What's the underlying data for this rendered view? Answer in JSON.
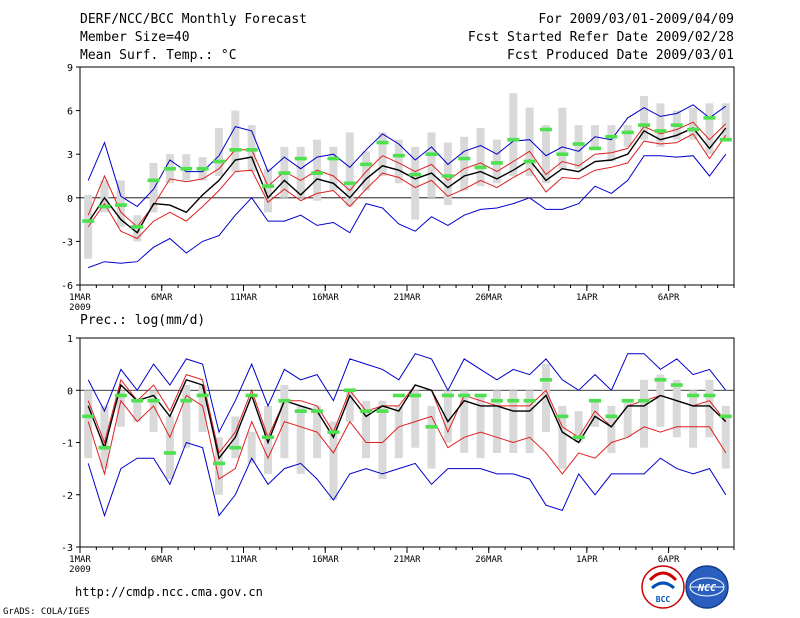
{
  "header": {
    "title": "DERF/NCC/BCC Monthly Forecast",
    "member": "Member Size=40",
    "variable": "Mean Surf. Temp.: °C",
    "period": "For 2009/03/01-2009/04/09",
    "started": "Fcst Started Refer Date 2009/02/28",
    "produced": "Fcst Produced Date 2009/03/01"
  },
  "footer": {
    "url": "http://cmdp.ncc.cma.gov.cn",
    "grads": "GrADS: COLA/IGES",
    "logo_bcc": "BCC",
    "logo_ncc": "NCC"
  },
  "colors": {
    "box": "#d9d9d9",
    "median": "#4ee04e",
    "mean": "#000000",
    "inner": "#e02020",
    "outer": "#0000cc"
  },
  "chart_data": [
    {
      "type": "line",
      "title": "Mean Surf. Temp.: °C",
      "x_ticks": [
        "1MAR",
        "6MAR",
        "11MAR",
        "16MAR",
        "21MAR",
        "26MAR",
        "1APR",
        "6APR"
      ],
      "x_sub": "2009",
      "x_tick_days": [
        1,
        6,
        11,
        16,
        21,
        26,
        32,
        37
      ],
      "xlim": [
        1,
        41
      ],
      "ylim": [
        -6,
        9
      ],
      "y_ticks": [
        -6,
        -3,
        0,
        3,
        6,
        9
      ],
      "series": [
        {
          "name": "max",
          "values": [
            1.2,
            3.8,
            0.1,
            -0.6,
            0.6,
            2.6,
            1.8,
            1.8,
            2.9,
            4.9,
            4.6,
            1.8,
            2.8,
            2.0,
            2.8,
            3.0,
            2.1,
            3.3,
            4.4,
            3.7,
            2.6,
            3.5,
            2.3,
            3.2,
            3.6,
            3.0,
            3.9,
            4.0,
            2.9,
            3.5,
            3.2,
            4.2,
            4.0,
            5.5,
            6.2,
            5.6,
            5.8,
            6.4,
            5.5,
            6.3
          ]
        },
        {
          "name": "upper",
          "values": [
            -1.2,
            1.5,
            -1.0,
            -2.0,
            -0.5,
            1.3,
            1.1,
            1.3,
            2.0,
            3.3,
            3.3,
            0.8,
            1.8,
            1.2,
            1.9,
            1.5,
            0.5,
            1.8,
            2.9,
            2.4,
            1.8,
            2.3,
            1.2,
            2.0,
            2.4,
            1.8,
            2.5,
            3.2,
            1.6,
            2.5,
            2.2,
            3.0,
            3.1,
            3.4,
            4.9,
            4.4,
            4.7,
            5.2,
            4.0,
            5.1
          ]
        },
        {
          "name": "mean",
          "values": [
            -1.7,
            0.0,
            -1.5,
            -2.4,
            -0.4,
            -0.5,
            -1.0,
            0.2,
            1.2,
            2.6,
            2.8,
            0.0,
            1.2,
            0.2,
            1.3,
            1.0,
            0.0,
            1.3,
            2.2,
            1.9,
            1.3,
            1.7,
            0.7,
            1.5,
            1.8,
            1.3,
            1.9,
            2.6,
            1.2,
            2.0,
            1.8,
            2.5,
            2.6,
            3.0,
            4.6,
            4.0,
            4.3,
            4.8,
            3.4,
            4.8
          ]
        },
        {
          "name": "lower",
          "values": [
            -2.0,
            -0.4,
            -2.3,
            -2.8,
            -1.6,
            -1.0,
            -1.6,
            -0.6,
            0.5,
            1.8,
            1.9,
            -0.3,
            0.6,
            -0.2,
            0.3,
            0.5,
            -0.6,
            0.6,
            1.7,
            1.4,
            0.7,
            1.2,
            0.1,
            0.6,
            1.2,
            0.7,
            1.4,
            2.0,
            0.4,
            1.4,
            1.3,
            1.9,
            2.1,
            2.4,
            3.9,
            3.7,
            3.8,
            4.4,
            2.7,
            4.3
          ]
        },
        {
          "name": "min",
          "values": [
            -4.8,
            -4.4,
            -4.5,
            -4.4,
            -3.4,
            -2.8,
            -3.8,
            -3.0,
            -2.6,
            -1.2,
            0.0,
            -1.6,
            -1.6,
            -1.2,
            -1.9,
            -1.7,
            -2.4,
            -0.4,
            -0.7,
            -1.8,
            -2.3,
            -1.3,
            -1.9,
            -1.2,
            -0.8,
            -0.7,
            -0.4,
            0.0,
            -0.8,
            -0.8,
            -0.4,
            0.8,
            0.3,
            1.2,
            2.9,
            2.9,
            2.8,
            2.9,
            1.5,
            3.0
          ]
        }
      ],
      "box_range": [
        [
          -4.2,
          0.2
        ],
        [
          -1.0,
          1.2
        ],
        [
          -2.0,
          1.2
        ],
        [
          -3.0,
          -1.2
        ],
        [
          -1.0,
          2.4
        ],
        [
          1.0,
          3.0
        ],
        [
          1.2,
          3.0
        ],
        [
          1.2,
          2.8
        ],
        [
          1.5,
          4.8
        ],
        [
          1.8,
          6.0
        ],
        [
          1.8,
          5.0
        ],
        [
          -1.0,
          2.0
        ],
        [
          0.0,
          3.5
        ],
        [
          0.0,
          3.5
        ],
        [
          -0.2,
          4.0
        ],
        [
          0.5,
          3.5
        ],
        [
          -0.6,
          4.5
        ],
        [
          0.5,
          3.2
        ],
        [
          1.5,
          4.5
        ],
        [
          1.0,
          4.0
        ],
        [
          -1.5,
          3.5
        ],
        [
          0.0,
          4.5
        ],
        [
          -0.5,
          3.8
        ],
        [
          0.5,
          4.2
        ],
        [
          0.8,
          4.8
        ],
        [
          1.0,
          4.0
        ],
        [
          1.5,
          7.2
        ],
        [
          1.5,
          6.2
        ],
        [
          1.0,
          5.0
        ],
        [
          2.0,
          6.2
        ],
        [
          2.0,
          5.0
        ],
        [
          3.5,
          5.0
        ],
        [
          2.5,
          5.0
        ],
        [
          3.5,
          5.0
        ],
        [
          4.0,
          7.0
        ],
        [
          3.5,
          6.5
        ],
        [
          4.0,
          6.0
        ],
        [
          4.0,
          6.2
        ],
        [
          3.0,
          6.5
        ],
        [
          4.0,
          6.5
        ]
      ],
      "median_marks": [
        -1.6,
        -0.6,
        -0.5,
        -2.0,
        1.2,
        2.0,
        2.0,
        2.0,
        2.5,
        3.3,
        3.3,
        0.8,
        1.7,
        2.7,
        1.7,
        2.7,
        1.0,
        2.3,
        3.8,
        2.9,
        1.6,
        3.0,
        1.5,
        2.7,
        2.1,
        2.4,
        4.0,
        2.5,
        4.7,
        3.0,
        3.7,
        3.4,
        4.2,
        4.5,
        5.0,
        4.6,
        5.0,
        4.7,
        5.5,
        4.0
      ]
    },
    {
      "type": "line",
      "title": "Prec.: log(mm/d)",
      "x_ticks": [
        "1MAR",
        "6MAR",
        "11MAR",
        "16MAR",
        "21MAR",
        "26MAR",
        "1APR",
        "6APR"
      ],
      "x_sub": "2009",
      "x_tick_days": [
        1,
        6,
        11,
        16,
        21,
        26,
        32,
        37
      ],
      "xlim": [
        1,
        41
      ],
      "ylim": [
        -3,
        1
      ],
      "y_ticks": [
        -3,
        -2,
        -1,
        0,
        1
      ],
      "series": [
        {
          "name": "max",
          "values": [
            0.2,
            -0.4,
            0.4,
            0.0,
            0.5,
            0.1,
            0.6,
            0.5,
            -0.8,
            -0.2,
            0.5,
            -0.3,
            0.4,
            0.2,
            0.3,
            -0.2,
            0.6,
            0.5,
            0.4,
            0.2,
            0.7,
            0.6,
            0.0,
            0.6,
            0.4,
            0.2,
            0.4,
            0.3,
            0.6,
            0.2,
            0.0,
            0.3,
            0.0,
            0.7,
            0.7,
            0.4,
            0.6,
            0.3,
            0.4,
            0.0
          ]
        },
        {
          "name": "upper",
          "values": [
            -0.2,
            -1.0,
            0.2,
            -0.2,
            0.1,
            -0.4,
            0.3,
            0.2,
            -1.2,
            -0.8,
            0.0,
            -0.9,
            -0.2,
            -0.2,
            -0.3,
            -0.8,
            0.0,
            -0.4,
            -0.3,
            -0.3,
            0.1,
            0.0,
            -0.8,
            -0.1,
            -0.2,
            -0.3,
            -0.3,
            -0.3,
            0.0,
            -0.7,
            -0.9,
            -0.4,
            -0.7,
            -0.3,
            -0.2,
            -0.1,
            -0.2,
            -0.3,
            -0.2,
            -0.6
          ]
        },
        {
          "name": "mean",
          "values": [
            -0.3,
            -1.1,
            0.1,
            -0.2,
            -0.1,
            -0.5,
            0.2,
            0.1,
            -1.3,
            -0.9,
            -0.1,
            -1.0,
            -0.2,
            -0.3,
            -0.4,
            -0.9,
            -0.1,
            -0.5,
            -0.3,
            -0.4,
            0.1,
            0.0,
            -0.6,
            -0.2,
            -0.3,
            -0.3,
            -0.4,
            -0.4,
            -0.1,
            -0.8,
            -1.0,
            -0.5,
            -0.7,
            -0.3,
            -0.3,
            -0.1,
            -0.2,
            -0.3,
            -0.3,
            -0.6
          ]
        },
        {
          "name": "lower",
          "values": [
            -0.6,
            -1.6,
            -0.2,
            -0.6,
            -0.3,
            -0.9,
            -0.1,
            -0.3,
            -1.7,
            -1.5,
            -0.6,
            -1.3,
            -0.6,
            -0.7,
            -0.8,
            -1.2,
            -0.6,
            -1.0,
            -1.0,
            -0.7,
            -0.6,
            -0.5,
            -1.1,
            -0.9,
            -0.8,
            -0.9,
            -1.0,
            -0.9,
            -1.2,
            -1.6,
            -1.2,
            -1.3,
            -1.0,
            -0.9,
            -0.7,
            -0.8,
            -0.7,
            -0.7,
            -0.7,
            -1.2
          ]
        },
        {
          "name": "min",
          "values": [
            -1.4,
            -2.4,
            -1.5,
            -1.3,
            -1.3,
            -1.8,
            -1.0,
            -1.1,
            -2.4,
            -2.0,
            -1.3,
            -1.8,
            -1.5,
            -1.4,
            -1.7,
            -2.1,
            -1.6,
            -1.5,
            -1.6,
            -1.5,
            -1.4,
            -1.8,
            -1.5,
            -1.5,
            -1.5,
            -1.6,
            -1.6,
            -1.7,
            -2.2,
            -2.3,
            -1.6,
            -2.0,
            -1.6,
            -1.6,
            -1.6,
            -1.3,
            -1.5,
            -1.6,
            -1.5,
            -2.0
          ]
        }
      ],
      "box_range": [
        [
          -1.3,
          0.0
        ],
        [
          -1.5,
          -0.3
        ],
        [
          -0.7,
          0.0
        ],
        [
          -0.6,
          -0.2
        ],
        [
          -0.8,
          0.0
        ],
        [
          -1.7,
          -0.5
        ],
        [
          -1.1,
          0.1
        ],
        [
          -0.8,
          0.1
        ],
        [
          -2.0,
          -0.9
        ],
        [
          -1.3,
          -0.5
        ],
        [
          -1.4,
          -0.8
        ],
        [
          -1.6,
          -0.3
        ],
        [
          -1.3,
          0.1
        ],
        [
          -1.6,
          -0.3
        ],
        [
          -1.3,
          -0.3
        ],
        [
          -2.1,
          -0.6
        ],
        [
          -0.6,
          0.0
        ],
        [
          -1.3,
          -0.2
        ],
        [
          -1.7,
          -0.2
        ],
        [
          -1.3,
          -0.3
        ],
        [
          -1.1,
          0.0
        ],
        [
          -1.5,
          -0.3
        ],
        [
          -1.0,
          0.0
        ],
        [
          -1.2,
          0.0
        ],
        [
          -1.3,
          -0.1
        ],
        [
          -1.2,
          0.0
        ],
        [
          -1.2,
          0.0
        ],
        [
          -1.2,
          0.0
        ],
        [
          -0.8,
          0.5
        ],
        [
          -1.5,
          -0.3
        ],
        [
          -1.0,
          -0.4
        ],
        [
          -0.7,
          -0.2
        ],
        [
          -1.2,
          -0.3
        ],
        [
          -0.9,
          -0.2
        ],
        [
          -1.1,
          0.2
        ],
        [
          -0.7,
          0.3
        ],
        [
          -0.9,
          0.2
        ],
        [
          -1.1,
          0.0
        ],
        [
          -0.9,
          0.2
        ],
        [
          -1.5,
          -0.3
        ]
      ],
      "median_marks": [
        -0.5,
        -1.1,
        -0.1,
        -0.2,
        -0.2,
        -1.2,
        -0.2,
        -0.1,
        -1.4,
        -1.1,
        -0.1,
        -0.9,
        -0.2,
        -0.4,
        -0.4,
        -0.8,
        0.0,
        -0.4,
        -0.4,
        -0.1,
        -0.1,
        -0.7,
        -0.1,
        -0.1,
        -0.1,
        -0.2,
        -0.2,
        -0.2,
        0.2,
        -0.5,
        -0.9,
        -0.2,
        -0.5,
        -0.2,
        -0.2,
        0.2,
        0.1,
        -0.1,
        -0.1,
        -0.5
      ]
    }
  ]
}
